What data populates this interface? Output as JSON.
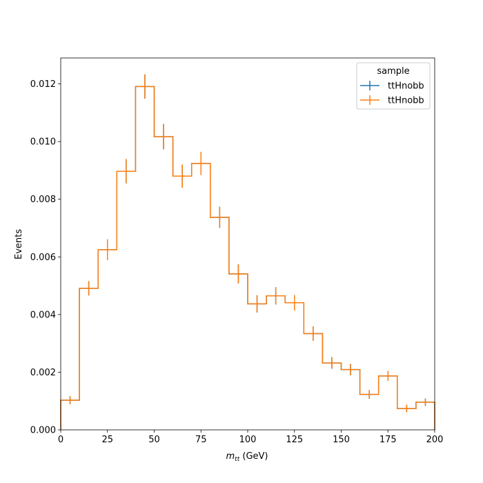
{
  "chart_data": {
    "type": "histogram",
    "xlabel_main": "m",
    "xlabel_sub": "tt",
    "xlabel_unit": " (GeV)",
    "ylabel": "Events",
    "xlim": [
      0,
      200
    ],
    "ylim": [
      0,
      0.0129
    ],
    "xticks": [
      0,
      25,
      50,
      75,
      100,
      125,
      150,
      175,
      200
    ],
    "xtick_labels": [
      "0",
      "25",
      "50",
      "75",
      "100",
      "125",
      "150",
      "175",
      "200"
    ],
    "yticks": [
      0,
      0.002,
      0.004,
      0.006,
      0.008,
      0.01,
      0.012
    ],
    "ytick_labels": [
      "0.000",
      "0.002",
      "0.004",
      "0.006",
      "0.008",
      "0.010",
      "0.012"
    ],
    "bin_edges": [
      0,
      10,
      20,
      30,
      40,
      50,
      60,
      70,
      80,
      90,
      100,
      110,
      120,
      130,
      140,
      150,
      160,
      170,
      180,
      190,
      200
    ],
    "legend_title": "sample",
    "legend_position": "top-right",
    "series": [
      {
        "name": "ttHnobb",
        "color": "#1f77b4",
        "values": [
          0.00103,
          0.00491,
          0.00625,
          0.00897,
          0.01191,
          0.01017,
          0.0088,
          0.00924,
          0.00737,
          0.00541,
          0.00437,
          0.00465,
          0.00441,
          0.00334,
          0.00232,
          0.00209,
          0.00123,
          0.00187,
          0.00074,
          0.00096
        ],
        "errors": [
          0.00014,
          0.00025,
          0.00036,
          0.00042,
          0.00042,
          0.00044,
          0.0004,
          0.0004,
          0.00037,
          0.00033,
          0.0003,
          0.0003,
          0.00027,
          0.00025,
          0.0002,
          0.0002,
          0.00015,
          0.00017,
          0.00013,
          0.00013
        ]
      },
      {
        "name": "ttHnobb",
        "color": "#ff7f0e",
        "values": [
          0.00103,
          0.00491,
          0.00625,
          0.00897,
          0.01191,
          0.01017,
          0.0088,
          0.00924,
          0.00737,
          0.00541,
          0.00437,
          0.00465,
          0.00441,
          0.00334,
          0.00232,
          0.00209,
          0.00123,
          0.00187,
          0.00074,
          0.00096
        ],
        "errors": [
          0.00014,
          0.00025,
          0.00036,
          0.00042,
          0.00042,
          0.00044,
          0.0004,
          0.0004,
          0.00037,
          0.00033,
          0.0003,
          0.0003,
          0.00027,
          0.00025,
          0.0002,
          0.0002,
          0.00015,
          0.00017,
          0.00013,
          0.00013
        ]
      }
    ]
  }
}
